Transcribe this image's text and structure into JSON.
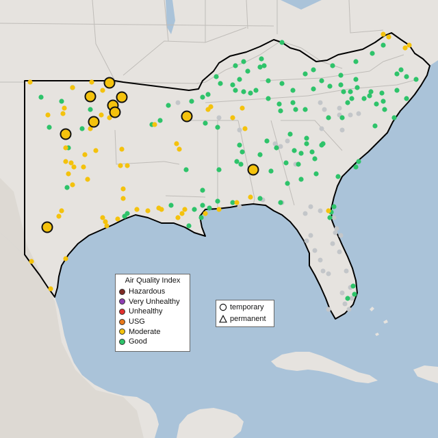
{
  "colors": {
    "ocean": "#aac3d9",
    "land": "#e6e3df",
    "terrain_west": "#d7d2cc",
    "state_line": "#bfbcb8",
    "region_border": "#000000"
  },
  "legend": {
    "title": "Air Quality Index",
    "items": [
      {
        "label": "Hazardous",
        "color": "#7e2b25"
      },
      {
        "label": "Very Unhealthy",
        "color": "#8f3fb4"
      },
      {
        "label": "Unhealthy",
        "color": "#e2302e"
      },
      {
        "label": "USG",
        "color": "#e8781b"
      },
      {
        "label": "Moderate",
        "color": "#f4c20d"
      },
      {
        "label": "Good",
        "color": "#2ec36a"
      }
    ]
  },
  "monitor_types": {
    "temporary_label": "temporary",
    "permanent_label": "permanent"
  },
  "monitors": {
    "large_moderate_temporary": 11,
    "small_moderate": 58,
    "small_good": 118,
    "small_no_data": 40
  },
  "nodata_color": "#c3c6c9"
}
